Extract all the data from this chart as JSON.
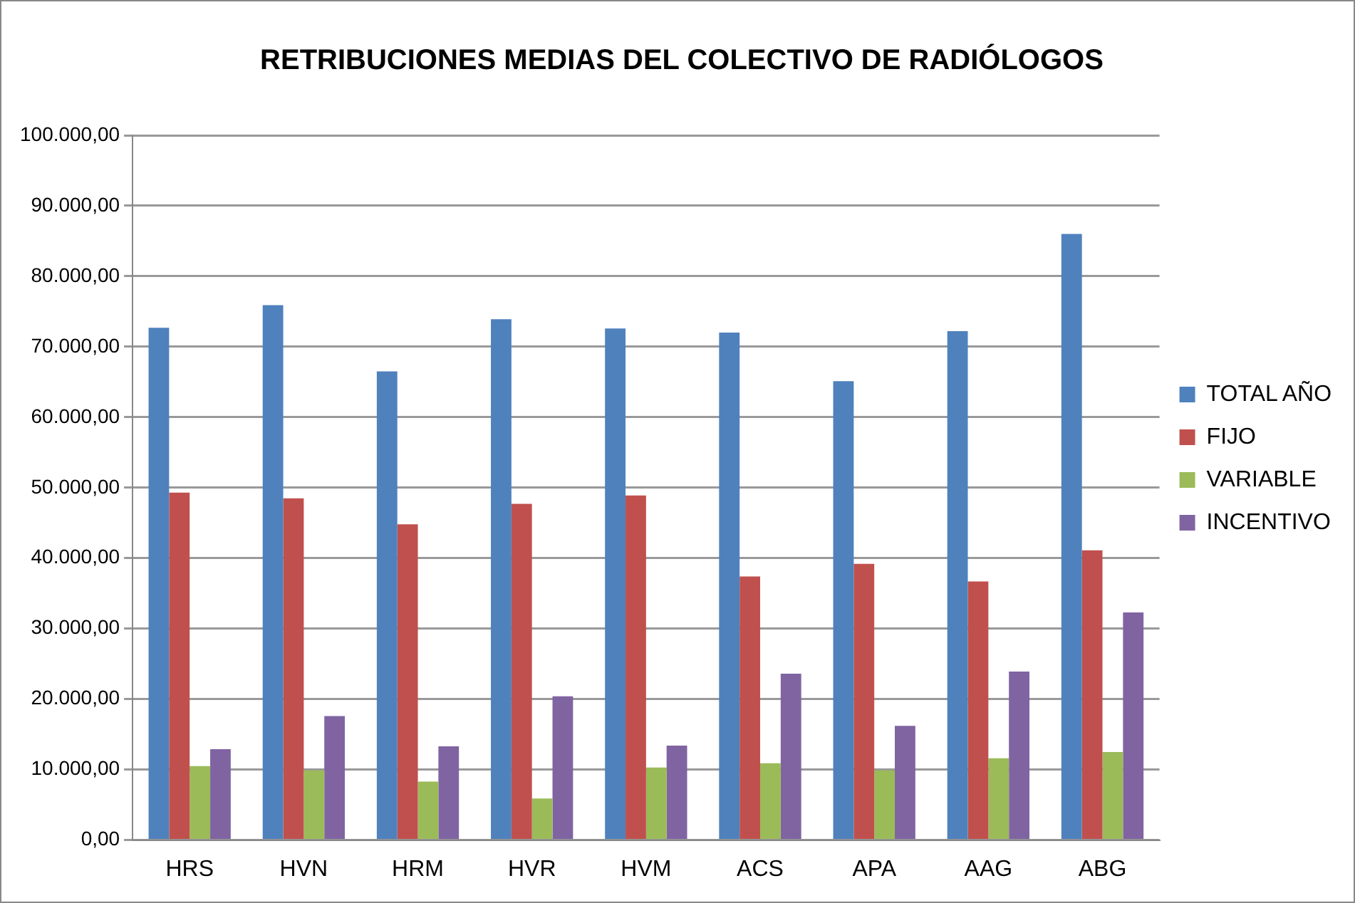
{
  "chart_data": {
    "type": "bar",
    "title": "RETRIBUCIONES MEDIAS DEL COLECTIVO DE RADIÓLOGOS",
    "categories": [
      "HRS",
      "HVN",
      "HRM",
      "HVR",
      "HVM",
      "ACS",
      "APA",
      "AAG",
      "ABG"
    ],
    "series": [
      {
        "name": "TOTAL AÑO",
        "color": "#4f81bd",
        "values": [
          72700,
          75900,
          66500,
          73900,
          72600,
          72000,
          65100,
          72200,
          86000
        ]
      },
      {
        "name": "FIJO",
        "color": "#c0504d",
        "values": [
          49300,
          48500,
          44800,
          47700,
          48900,
          37400,
          39200,
          36700,
          41100
        ]
      },
      {
        "name": "VARIABLE",
        "color": "#9bbb59",
        "values": [
          10500,
          9900,
          8300,
          5900,
          10300,
          10900,
          9900,
          11600,
          12500
        ]
      },
      {
        "name": "INCENTIVO",
        "color": "#8064a2",
        "values": [
          12900,
          17600,
          13300,
          20400,
          13400,
          23600,
          16200,
          23900,
          32300
        ]
      }
    ],
    "ylim": [
      0,
      100000
    ],
    "yticks": [
      {
        "value": 0,
        "label": "0,00"
      },
      {
        "value": 10000,
        "label": "10.000,00"
      },
      {
        "value": 20000,
        "label": "20.000,00"
      },
      {
        "value": 30000,
        "label": "30.000,00"
      },
      {
        "value": 40000,
        "label": "40.000,00"
      },
      {
        "value": 50000,
        "label": "50.000,00"
      },
      {
        "value": 60000,
        "label": "60.000,00"
      },
      {
        "value": 70000,
        "label": "70.000,00"
      },
      {
        "value": 80000,
        "label": "80.000,00"
      },
      {
        "value": 90000,
        "label": "90.000,00"
      },
      {
        "value": 100000,
        "label": "100.000,00"
      }
    ],
    "grid": "y",
    "legend": "right"
  }
}
